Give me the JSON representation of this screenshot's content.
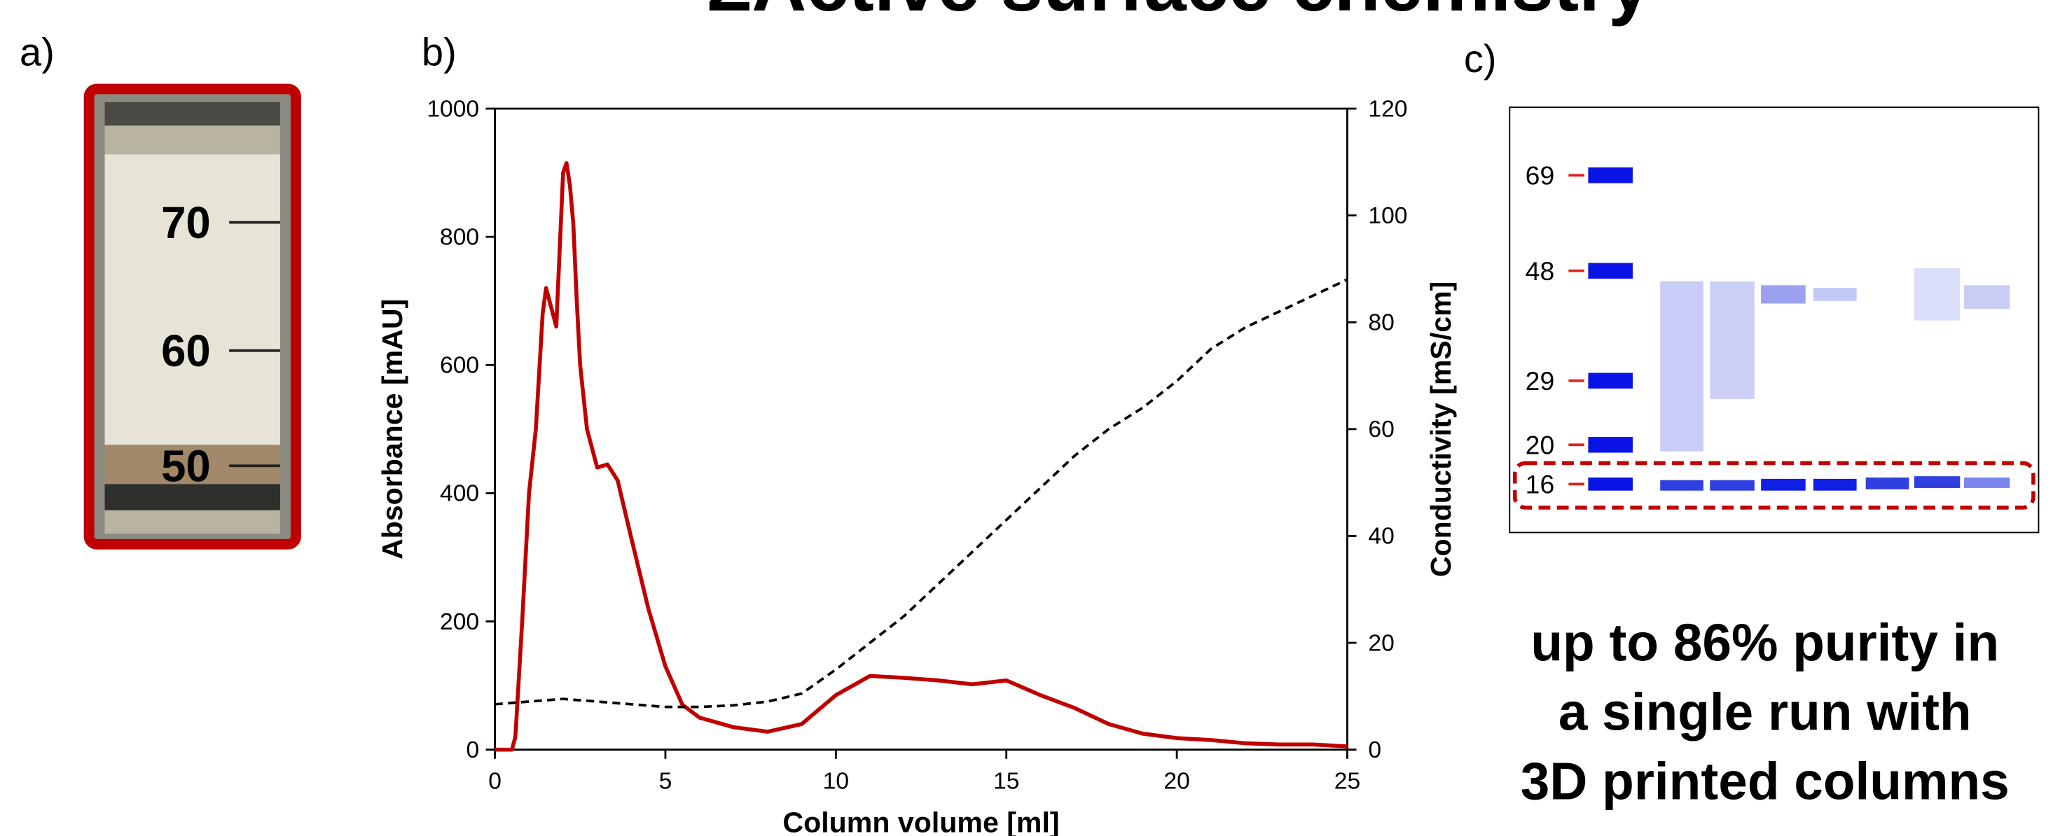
{
  "figure": {
    "title": "ΣActive surface chemistry",
    "panel_a": {
      "label": "a)",
      "ruler_labels": [
        "70",
        "60",
        "50"
      ]
    },
    "panel_c": {
      "label": "c)",
      "marker_labels": [
        "69",
        "48",
        "29",
        "20",
        "16"
      ],
      "caption": [
        "up to 86% purity in",
        "a single run with",
        "3D printed columns"
      ]
    }
  },
  "chart_data": {
    "type": "line",
    "panel_label": "b)",
    "x_label": "Column volume [ml]",
    "y_label": "Absorbance [mAU]",
    "y2_label": "Conductivity  [mS/cm]",
    "xlim": [
      0,
      25
    ],
    "xticks": [
      0,
      5,
      10,
      15,
      20,
      25
    ],
    "ylim": [
      0,
      1000
    ],
    "yticks": [
      0,
      200,
      400,
      600,
      800,
      1000
    ],
    "y2lim": [
      0,
      120
    ],
    "y2ticks": [
      0,
      20,
      40,
      60,
      80,
      100,
      120
    ],
    "series": [
      {
        "color": "#c00000",
        "linestyle": "solid",
        "axis": "y",
        "x": [
          0,
          0.5,
          0.6,
          0.8,
          1,
          1.2,
          1.4,
          1.5,
          1.6,
          1.8,
          2,
          2.1,
          2.2,
          2.3,
          2.4,
          2.5,
          2.7,
          3,
          3.3,
          3.6,
          4,
          4.5,
          5,
          5.5,
          6,
          7,
          8,
          9,
          10,
          11,
          12,
          13,
          14,
          15,
          16,
          17,
          18,
          19,
          20,
          21,
          22,
          23,
          24,
          25
        ],
        "values": [
          0,
          0,
          20,
          200,
          400,
          500,
          680,
          720,
          700,
          660,
          900,
          915,
          880,
          820,
          700,
          600,
          500,
          440,
          445,
          420,
          330,
          220,
          130,
          70,
          50,
          35,
          28,
          40,
          85,
          115,
          112,
          108,
          102,
          108,
          85,
          65,
          40,
          25,
          18,
          15,
          10,
          8,
          8,
          5
        ]
      },
      {
        "color": "#000000",
        "linestyle": "dashed",
        "axis": "y2",
        "x": [
          0,
          1,
          2,
          3,
          4,
          5,
          6,
          7,
          8,
          9,
          10,
          11,
          12,
          13,
          14,
          15,
          16,
          17,
          18,
          19,
          20,
          21,
          22,
          23,
          24,
          25
        ],
        "values": [
          8.5,
          9,
          9.5,
          9,
          8.5,
          8,
          8,
          8.3,
          9,
          10.5,
          15,
          20,
          25,
          31,
          37,
          43,
          49,
          55,
          60,
          64,
          69,
          75,
          79,
          82,
          85,
          88
        ]
      }
    ]
  }
}
